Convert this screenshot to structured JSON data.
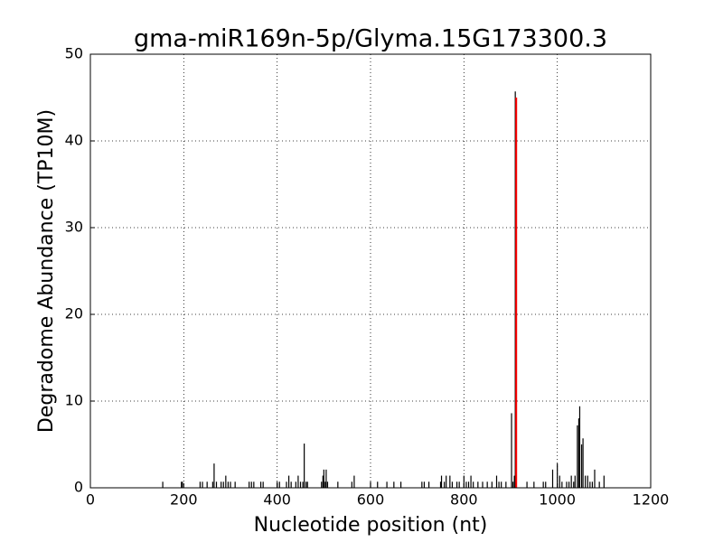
{
  "chart_data": {
    "type": "stem",
    "title": "gma-miR169n-5p/Glyma.15G173300.3",
    "x_label": "Nucleotide position (nt)",
    "y_label": "Degradome Abundance (TP10M)",
    "xlim": [
      0,
      1200
    ],
    "xticks": [
      0,
      200,
      400,
      600,
      800,
      1000,
      1200
    ],
    "ylim": [
      0,
      50
    ],
    "yticks": [
      0,
      10,
      20,
      30,
      40,
      50
    ],
    "grid": true,
    "series": [
      {
        "color": "#000000",
        "x": [
          155,
          195,
          197,
          235,
          240,
          250,
          262,
          265,
          270,
          280,
          285,
          290,
          295,
          300,
          310,
          340,
          345,
          350,
          365,
          370,
          400,
          405,
          420,
          425,
          430,
          440,
          445,
          450,
          455,
          458,
          462,
          465,
          495,
          498,
          500,
          503,
          505,
          508,
          530,
          560,
          565,
          600,
          615,
          635,
          650,
          665,
          710,
          715,
          725,
          750,
          752,
          758,
          762,
          770,
          775,
          785,
          790,
          800,
          805,
          810,
          815,
          820,
          830,
          840,
          850,
          860,
          870,
          875,
          880,
          890,
          902,
          905,
          908,
          910,
          912,
          935,
          950,
          970,
          975,
          990,
          1000,
          1005,
          1010,
          1020,
          1025,
          1030,
          1035,
          1038,
          1043,
          1046,
          1048,
          1052,
          1055,
          1060,
          1065,
          1070,
          1075,
          1080,
          1090,
          1100
        ],
        "values": [
          0.7,
          0.7,
          0.7,
          0.7,
          0.7,
          0.7,
          0.7,
          2.8,
          0.7,
          0.7,
          0.7,
          1.4,
          0.7,
          0.7,
          0.7,
          0.7,
          0.7,
          0.7,
          0.7,
          0.7,
          0.7,
          0.7,
          0.7,
          1.4,
          0.7,
          0.7,
          1.4,
          0.7,
          0.7,
          5.1,
          0.7,
          0.7,
          0.7,
          1.4,
          2.1,
          0.7,
          2.1,
          0.7,
          0.7,
          0.7,
          1.4,
          0.7,
          0.7,
          0.7,
          0.7,
          0.7,
          0.7,
          0.7,
          0.7,
          0.7,
          1.4,
          0.7,
          1.4,
          1.4,
          0.7,
          0.7,
          0.7,
          1.4,
          0.7,
          0.7,
          1.4,
          0.7,
          0.7,
          0.7,
          0.7,
          0.7,
          1.4,
          0.7,
          0.7,
          0.7,
          8.6,
          0.7,
          1.4,
          45.7,
          2.1,
          0.7,
          0.7,
          0.7,
          0.7,
          2.1,
          2.8,
          1.4,
          0.7,
          0.7,
          0.7,
          1.4,
          0.7,
          1.4,
          7.2,
          8.0,
          9.4,
          5.0,
          5.7,
          1.4,
          1.4,
          0.7,
          0.7,
          2.1,
          0.7,
          1.4
        ]
      },
      {
        "color": "#ff0000",
        "x": [
          912
        ],
        "values": [
          45
        ]
      }
    ]
  }
}
